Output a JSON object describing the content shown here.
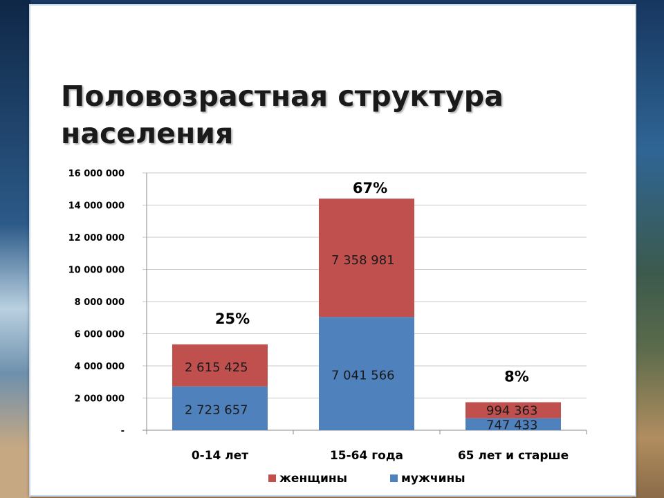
{
  "slide": {
    "title_line1": "Половозрастная структура",
    "title_line2": "населения"
  },
  "colors": {
    "female": "#c0504d",
    "male": "#4f81bd",
    "grid": "#c8c8c8"
  },
  "chart_data": {
    "type": "bar",
    "stacked": true,
    "categories": [
      "0-14 лет",
      "15-64 года",
      "65 лет и старше"
    ],
    "series": [
      {
        "name": "мужчины",
        "values": [
          2723657,
          7041566,
          747433
        ],
        "labels": [
          "2 723 657",
          "7 041 566",
          "747 433"
        ]
      },
      {
        "name": "женщины",
        "values": [
          2615425,
          7358981,
          994363
        ],
        "labels": [
          "2 615 425",
          "7 358 981",
          "994 363"
        ]
      }
    ],
    "totals_percent": [
      "25%",
      "67%",
      "8%"
    ],
    "ylim": [
      0,
      16000000
    ],
    "y_ticks": [
      {
        "value": 0,
        "label": "-"
      },
      {
        "value": 2000000,
        "label": "2 000 000"
      },
      {
        "value": 4000000,
        "label": "4 000 000"
      },
      {
        "value": 6000000,
        "label": "6 000 000"
      },
      {
        "value": 8000000,
        "label": "8 000 000"
      },
      {
        "value": 10000000,
        "label": "10 000 000"
      },
      {
        "value": 12000000,
        "label": "12 000 000"
      },
      {
        "value": 14000000,
        "label": "14 000 000"
      },
      {
        "value": 16000000,
        "label": "16 000 000"
      }
    ],
    "legend": {
      "position": "bottom",
      "order": [
        "женщины",
        "мужчины"
      ]
    },
    "grid": true
  }
}
